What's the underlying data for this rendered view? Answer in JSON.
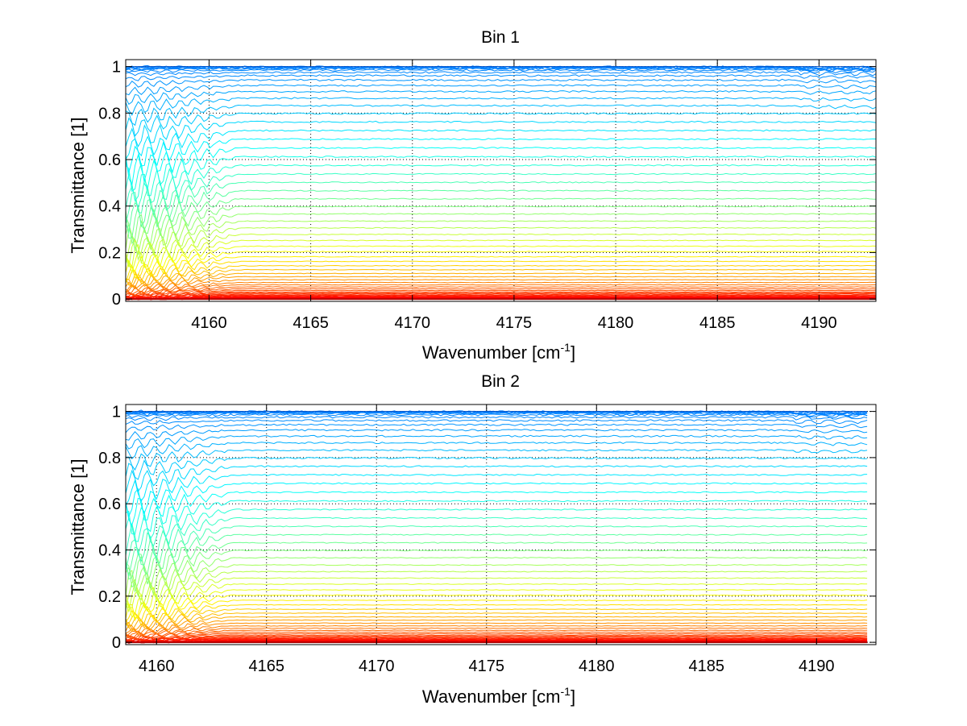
{
  "figure": {
    "background": "#ffffff"
  },
  "chart_data": [
    {
      "type": "line",
      "title": "Bin 1",
      "xlabel": "Wavenumber [cm",
      "xlabel_sup": "-1",
      "xlabel_end": "]",
      "ylabel": "Transmittance [1]",
      "xlim": [
        4155.9,
        4192.8
      ],
      "ylim": [
        -0.01,
        1.03
      ],
      "xticks": [
        4160,
        4165,
        4170,
        4175,
        4180,
        4185,
        4190
      ],
      "xtick_labels": [
        "4160",
        "4165",
        "4170",
        "4175",
        "4180",
        "4185",
        "4190"
      ],
      "yticks": [
        0,
        0.2,
        0.4,
        0.6,
        0.8,
        1
      ],
      "ytick_labels": [
        "0",
        "0.2",
        "0.4",
        "0.6",
        "0.8",
        "1"
      ],
      "grid": true,
      "grid_style": "dotted",
      "colormap": "jet",
      "x_start": 4155.9,
      "x_end": 4192.8,
      "feature_range": [
        4155.9,
        4161.5
      ],
      "curve_count": 60,
      "series_levels": [
        0.0,
        0.001,
        0.002,
        0.003,
        0.004,
        0.005,
        0.006,
        0.008,
        0.01,
        0.012,
        0.015,
        0.018,
        0.022,
        0.026,
        0.031,
        0.037,
        0.044,
        0.052,
        0.061,
        0.071,
        0.083,
        0.096,
        0.11,
        0.126,
        0.143,
        0.162,
        0.182,
        0.204,
        0.227,
        0.252,
        0.278,
        0.306,
        0.335,
        0.366,
        0.398,
        0.431,
        0.466,
        0.502,
        0.538,
        0.575,
        0.612,
        0.65,
        0.688,
        0.725,
        0.762,
        0.798,
        0.832,
        0.864,
        0.893,
        0.919,
        0.942,
        0.961,
        0.975,
        0.985,
        0.991,
        0.994,
        0.996,
        0.997,
        0.998,
        0.999
      ]
    },
    {
      "type": "line",
      "title": "Bin 2",
      "xlabel": "Wavenumber [cm",
      "xlabel_sup": "-1",
      "xlabel_end": "]",
      "ylabel": "Transmittance [1]",
      "xlim": [
        4158.6,
        4192.7
      ],
      "ylim": [
        -0.01,
        1.03
      ],
      "xticks": [
        4160,
        4165,
        4170,
        4175,
        4180,
        4185,
        4190
      ],
      "xtick_labels": [
        "4160",
        "4165",
        "4170",
        "4175",
        "4180",
        "4185",
        "4190"
      ],
      "yticks": [
        0,
        0.2,
        0.4,
        0.6,
        0.8,
        1
      ],
      "ytick_labels": [
        "0",
        "0.2",
        "0.4",
        "0.6",
        "0.8",
        "1"
      ],
      "grid": true,
      "grid_style": "dotted",
      "colormap": "jet",
      "x_start": 4158.6,
      "x_end": 4192.3,
      "feature_range": [
        4158.6,
        4163.5
      ],
      "curve_count": 60,
      "series_levels": [
        0.0,
        0.001,
        0.002,
        0.003,
        0.004,
        0.005,
        0.006,
        0.008,
        0.01,
        0.012,
        0.015,
        0.018,
        0.022,
        0.026,
        0.031,
        0.037,
        0.044,
        0.052,
        0.061,
        0.071,
        0.083,
        0.096,
        0.11,
        0.126,
        0.143,
        0.162,
        0.182,
        0.204,
        0.227,
        0.252,
        0.278,
        0.306,
        0.335,
        0.366,
        0.398,
        0.431,
        0.466,
        0.502,
        0.538,
        0.575,
        0.612,
        0.65,
        0.688,
        0.725,
        0.762,
        0.798,
        0.832,
        0.864,
        0.893,
        0.919,
        0.942,
        0.961,
        0.975,
        0.985,
        0.991,
        0.994,
        0.996,
        0.997,
        0.998,
        0.999
      ]
    }
  ]
}
